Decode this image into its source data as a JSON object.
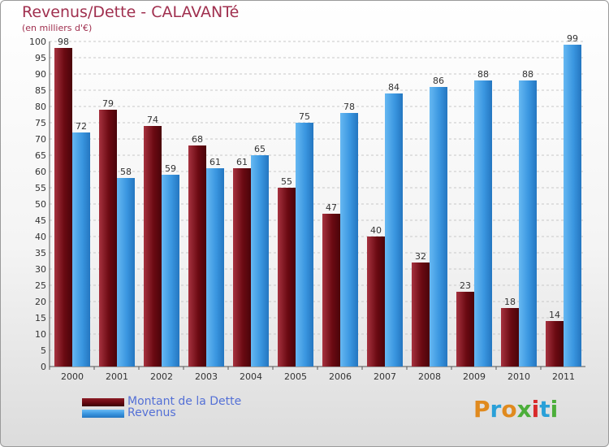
{
  "title": "Revenus/Dette - CALAVANTé",
  "subtitle": "(en milliers d'€)",
  "colors": {
    "dette": "#6b0a12",
    "revenus": "#3a96e0",
    "axis_text": "#333333",
    "grid": "#c8c8c8"
  },
  "chart_data": {
    "type": "bar",
    "title": "Revenus/Dette - CALAVANTé",
    "categories": [
      "2000",
      "2001",
      "2002",
      "2003",
      "2004",
      "2005",
      "2006",
      "2007",
      "2008",
      "2009",
      "2010",
      "2011"
    ],
    "series": [
      {
        "name": "Montant de la Dette",
        "values": [
          98,
          79,
          74,
          68,
          61,
          55,
          47,
          40,
          32,
          23,
          18,
          14
        ]
      },
      {
        "name": "Revenus",
        "values": [
          72,
          58,
          59,
          61,
          65,
          75,
          78,
          84,
          86,
          88,
          88,
          99
        ]
      }
    ],
    "ylim": [
      0,
      100
    ],
    "ytick_step": 5,
    "grid": true,
    "legend": "bottom-left"
  },
  "legend": [
    {
      "label": "Montant de la Dette"
    },
    {
      "label": "Revenus"
    }
  ],
  "logo": {
    "text": "Proxiti",
    "letter_colors": [
      "#e08a1e",
      "#2aa0d8",
      "#e08a1e",
      "#4cae3a",
      "#d82a2a",
      "#2aa0d8",
      "#4cae3a"
    ]
  }
}
